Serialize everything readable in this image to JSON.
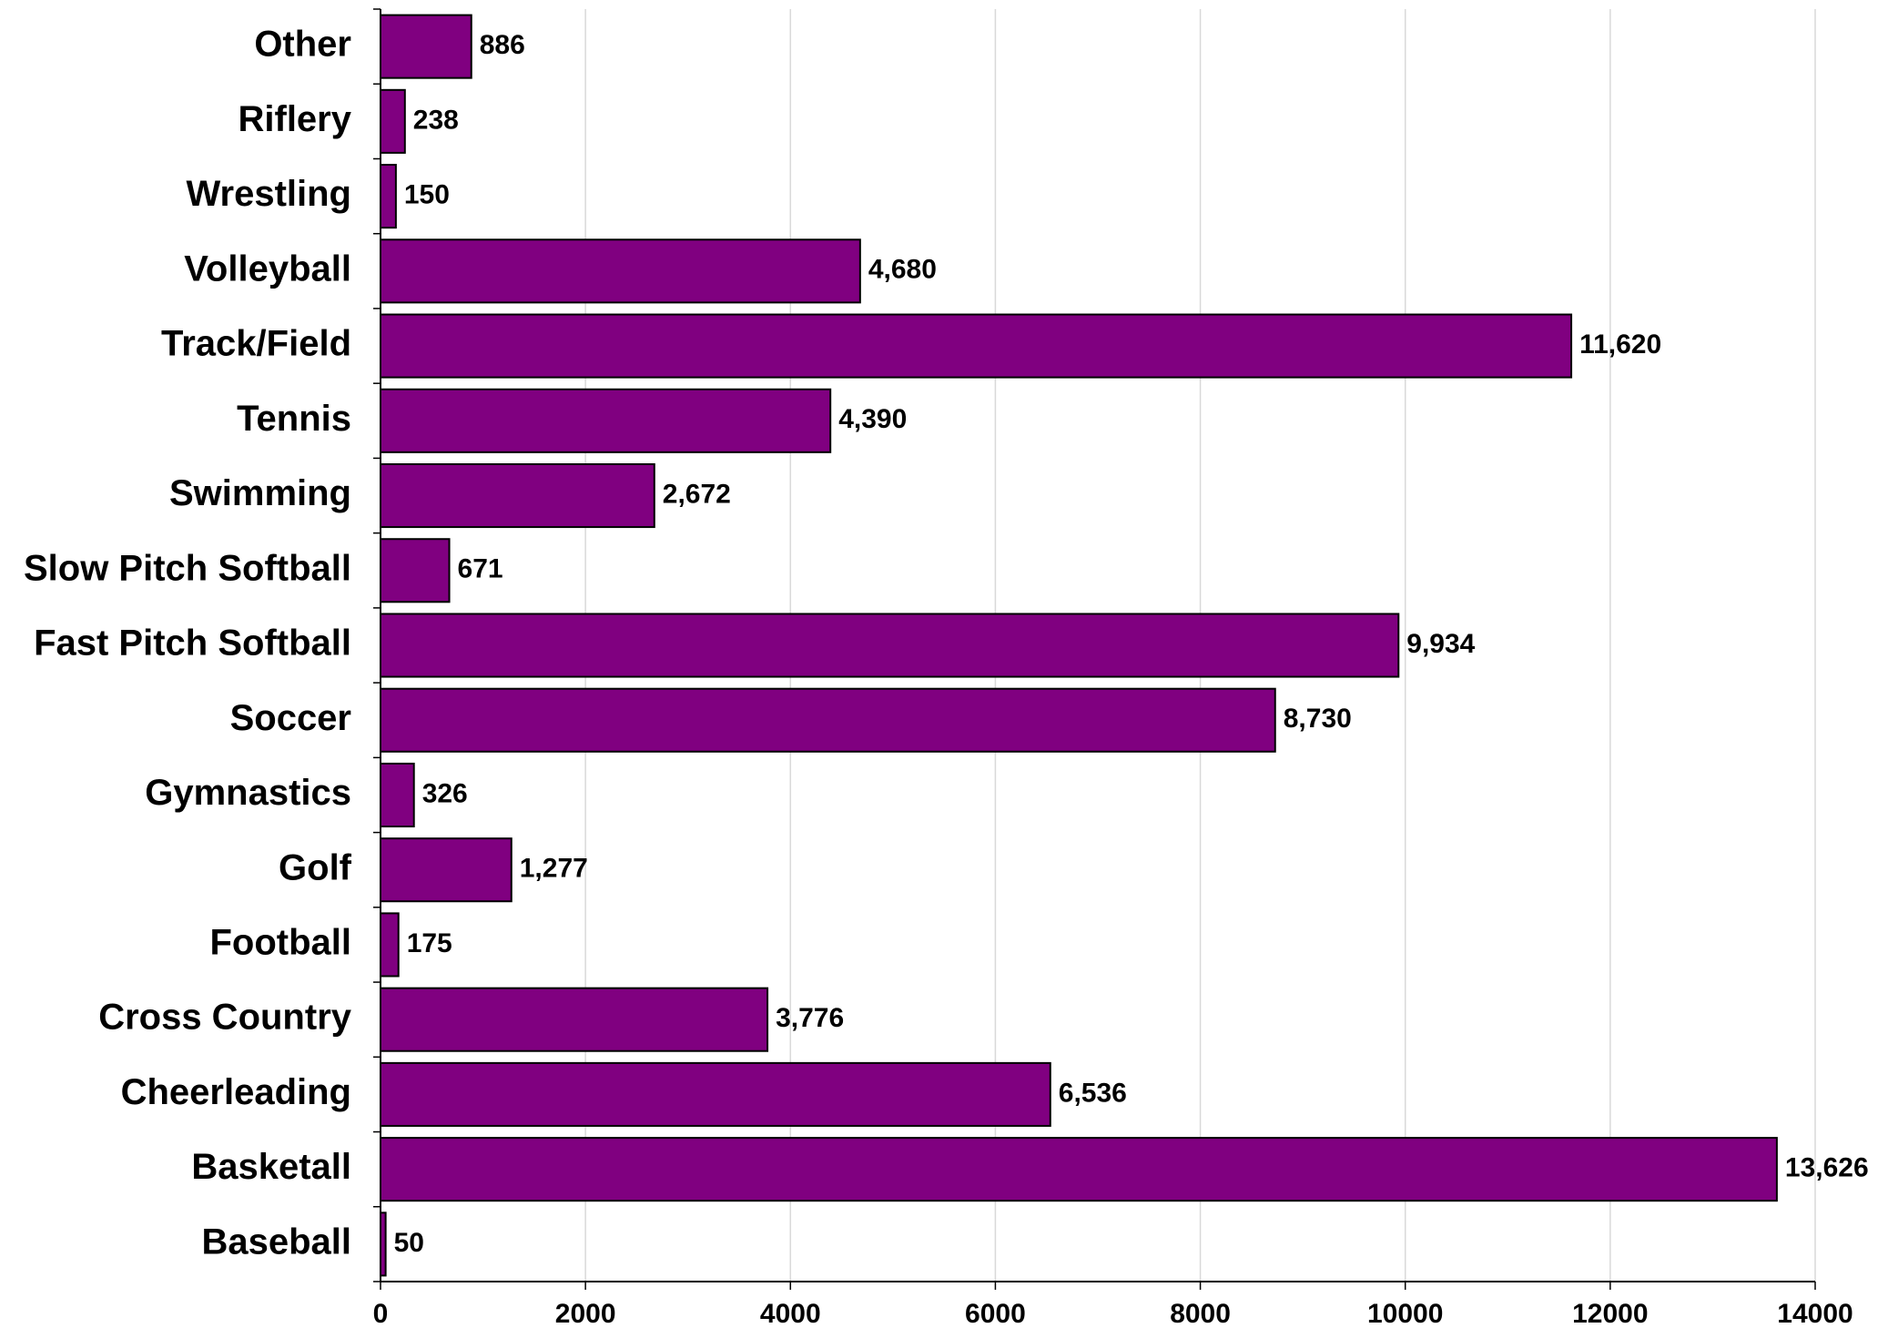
{
  "chart_data": {
    "type": "bar",
    "orientation": "horizontal",
    "categories": [
      "Other",
      "Riflery",
      "Wrestling",
      "Volleyball",
      "Track/Field",
      "Tennis",
      "Swimming",
      "Slow Pitch Softball",
      "Fast Pitch Softball",
      "Soccer",
      "Gymnastics",
      "Golf",
      "Football",
      "Cross Country",
      "Cheerleading",
      "Basketall",
      "Baseball"
    ],
    "values": [
      886,
      238,
      150,
      4680,
      11620,
      4390,
      2672,
      671,
      9934,
      8730,
      326,
      1277,
      175,
      3776,
      6536,
      13626,
      50
    ],
    "value_labels": [
      "886",
      "238",
      "150",
      "4,680",
      "11,620",
      "4,390",
      "2,672",
      "671",
      "9,934",
      "8,730",
      "326",
      "1,277",
      "175",
      "3,776",
      "6,536",
      "13,626",
      "50"
    ],
    "xlim": [
      0,
      14000
    ],
    "x_ticks": [
      0,
      2000,
      4000,
      6000,
      8000,
      10000,
      12000,
      14000
    ],
    "x_tick_labels": [
      "0",
      "2000",
      "4000",
      "6000",
      "8000",
      "10000",
      "12000",
      "14000"
    ],
    "grid": "vertical",
    "legend": "none",
    "title": "",
    "xlabel": "",
    "ylabel": "",
    "colors": {
      "bar_fill": "#800080",
      "bar_stroke": "#000000",
      "grid": "#d9d9d9",
      "axis": "#000000"
    }
  }
}
